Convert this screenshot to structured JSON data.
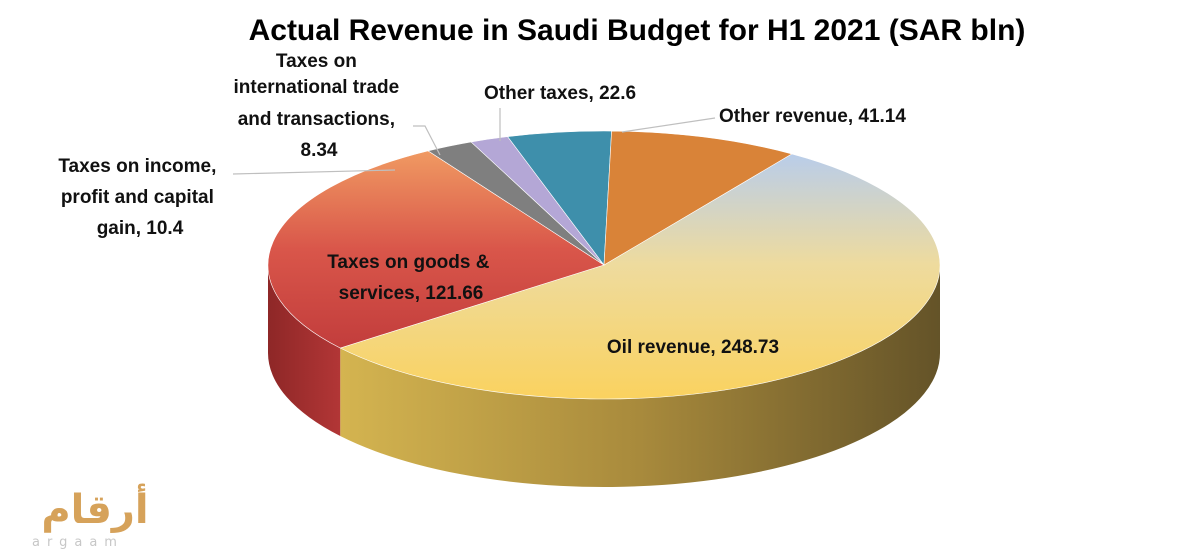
{
  "chart_data": {
    "type": "pie",
    "title": "Actual Revenue in Saudi Budget for H1 2021 (SAR bln)",
    "three_d": true,
    "slices": [
      {
        "name": "Oil revenue",
        "value": 248.73,
        "label": "Oil revenue, 248.73",
        "color": "#f8d468"
      },
      {
        "name": "Taxes on goods & services",
        "value": 121.66,
        "label_lines": [
          "Taxes on goods &",
          "services, 121.66"
        ],
        "color": "#cc4a44"
      },
      {
        "name": "Taxes on income, profit and capital gain",
        "value": 10.4,
        "label_lines": [
          "Taxes on income,",
          "profit and capital",
          "gain, 10.4"
        ],
        "color": "#7f7f7f"
      },
      {
        "name": "Taxes on international trade and transactions",
        "value": 8.34,
        "label_lines": [
          "Taxes on",
          "international trade",
          "and transactions,",
          "8.34"
        ],
        "color": "#b4a7d6"
      },
      {
        "name": "Other taxes",
        "value": 22.6,
        "label": "Other taxes, 22.6",
        "color": "#3e8fab"
      },
      {
        "name": "Other revenue",
        "value": 41.14,
        "label": "Other revenue, 41.14",
        "color": "#d98338"
      }
    ]
  },
  "logo": {
    "arabic": "أرقام",
    "latin": "argaam"
  }
}
